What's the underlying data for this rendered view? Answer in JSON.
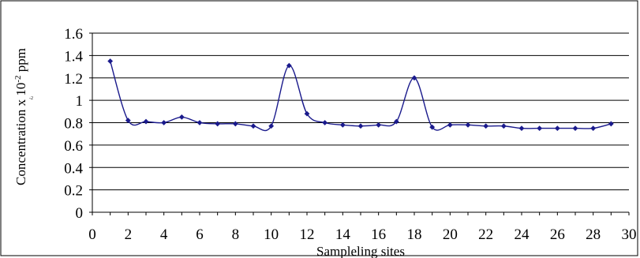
{
  "chart_data": {
    "type": "line",
    "xlabel": "Sampleling sites",
    "ylabel": "Concentration x 10",
    "ylabel_exponent": "-2",
    "ylabel_unit": "ppm",
    "ylabel_stray_mark": "-2",
    "xlim": [
      0,
      30
    ],
    "ylim": [
      0,
      1.6
    ],
    "x_ticks": [
      0,
      2,
      4,
      6,
      8,
      10,
      12,
      14,
      16,
      18,
      20,
      22,
      24,
      26,
      28,
      30
    ],
    "x_tick_labels": [
      "0",
      "2",
      "4",
      "6",
      "8",
      "10",
      "12",
      "14",
      "16",
      "18",
      "20",
      "22",
      "24",
      "26",
      "28",
      "30"
    ],
    "y_ticks": [
      0,
      0.2,
      0.4,
      0.6,
      0.8,
      1,
      1.2,
      1.4,
      1.6
    ],
    "y_tick_labels": [
      "0",
      "0.2",
      "0.4",
      "0.6",
      "0.8",
      "1",
      "1.2",
      "1.4",
      "1.6"
    ],
    "grid": "horizontal",
    "legend": "none",
    "series": [
      {
        "color": "#1a1a8c",
        "marker": "diamond",
        "smooth": true,
        "x": [
          1,
          2,
          3,
          4,
          5,
          6,
          7,
          8,
          9,
          10,
          11,
          12,
          13,
          14,
          15,
          16,
          17,
          18,
          19,
          20,
          21,
          22,
          23,
          24,
          25,
          26,
          27,
          28,
          29
        ],
        "values": [
          1.35,
          0.82,
          0.81,
          0.8,
          0.85,
          0.8,
          0.79,
          0.79,
          0.77,
          0.77,
          1.31,
          0.88,
          0.8,
          0.78,
          0.77,
          0.78,
          0.81,
          1.2,
          0.76,
          0.78,
          0.78,
          0.77,
          0.77,
          0.75,
          0.75,
          0.75,
          0.75,
          0.75,
          0.79
        ]
      }
    ]
  }
}
